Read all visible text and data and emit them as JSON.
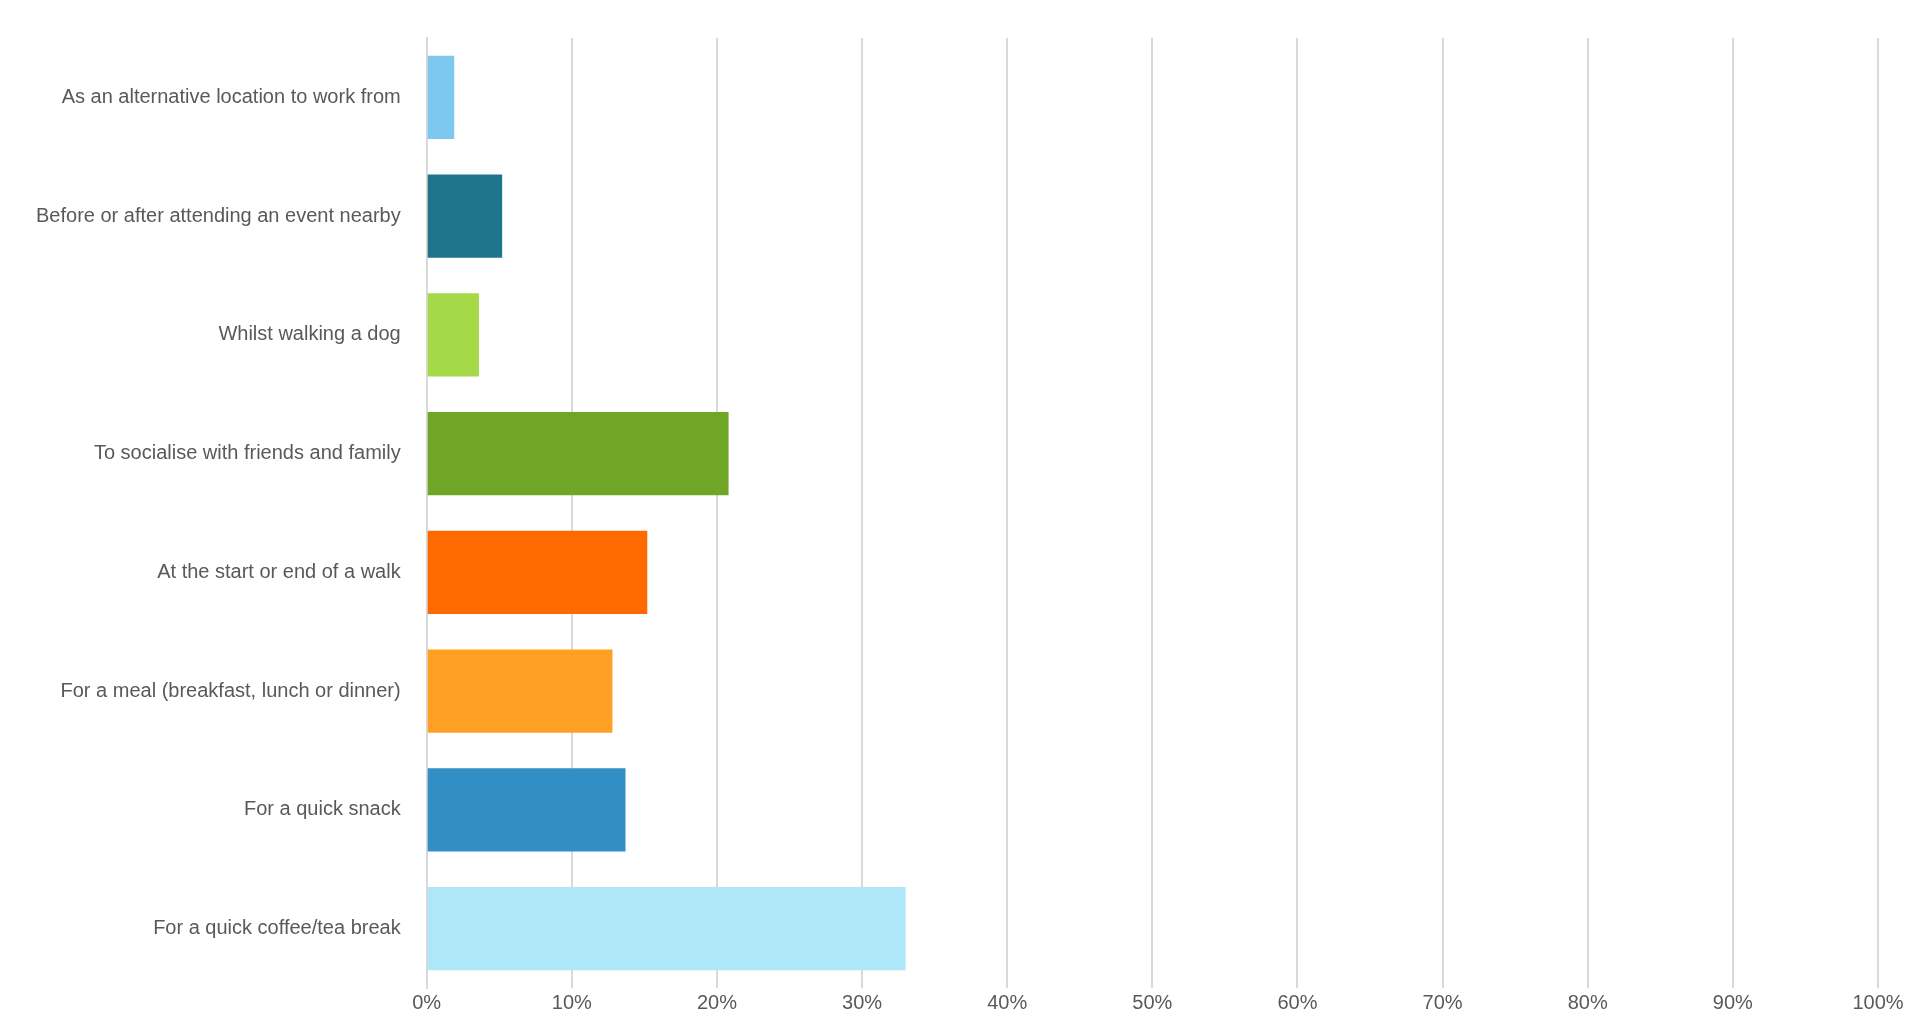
{
  "chart_data": {
    "type": "bar",
    "orientation": "horizontal",
    "categories": [
      "As an alternative location to work from",
      "Before or after attending an event nearby",
      "Whilst walking a dog",
      "To socialise with friends and family",
      "At the start or end of a walk",
      "For a meal (breakfast, lunch or dinner)",
      "For a quick snack",
      "For a quick coffee/tea break"
    ],
    "values": [
      1.9,
      5.2,
      3.6,
      20.8,
      15.2,
      12.8,
      13.7,
      33
    ],
    "colors": [
      "#7dc8ee",
      "#1f758b",
      "#a5d948",
      "#6fa626",
      "#ff6a00",
      "#ffa024",
      "#318fc6",
      "#aee8f8"
    ],
    "xlim": [
      0,
      100
    ],
    "xticks": [
      {
        "value": 0,
        "label": "0%"
      },
      {
        "value": 10,
        "label": "10%"
      },
      {
        "value": 20,
        "label": "20%"
      },
      {
        "value": 30,
        "label": "30%"
      },
      {
        "value": 40,
        "label": "40%"
      },
      {
        "value": 50,
        "label": "50%"
      },
      {
        "value": 60,
        "label": "60%"
      },
      {
        "value": 70,
        "label": "70%"
      },
      {
        "value": 80,
        "label": "80%"
      },
      {
        "value": 90,
        "label": "90%"
      },
      {
        "value": 100,
        "label": "100%"
      }
    ],
    "grid": "x",
    "legend": false
  }
}
